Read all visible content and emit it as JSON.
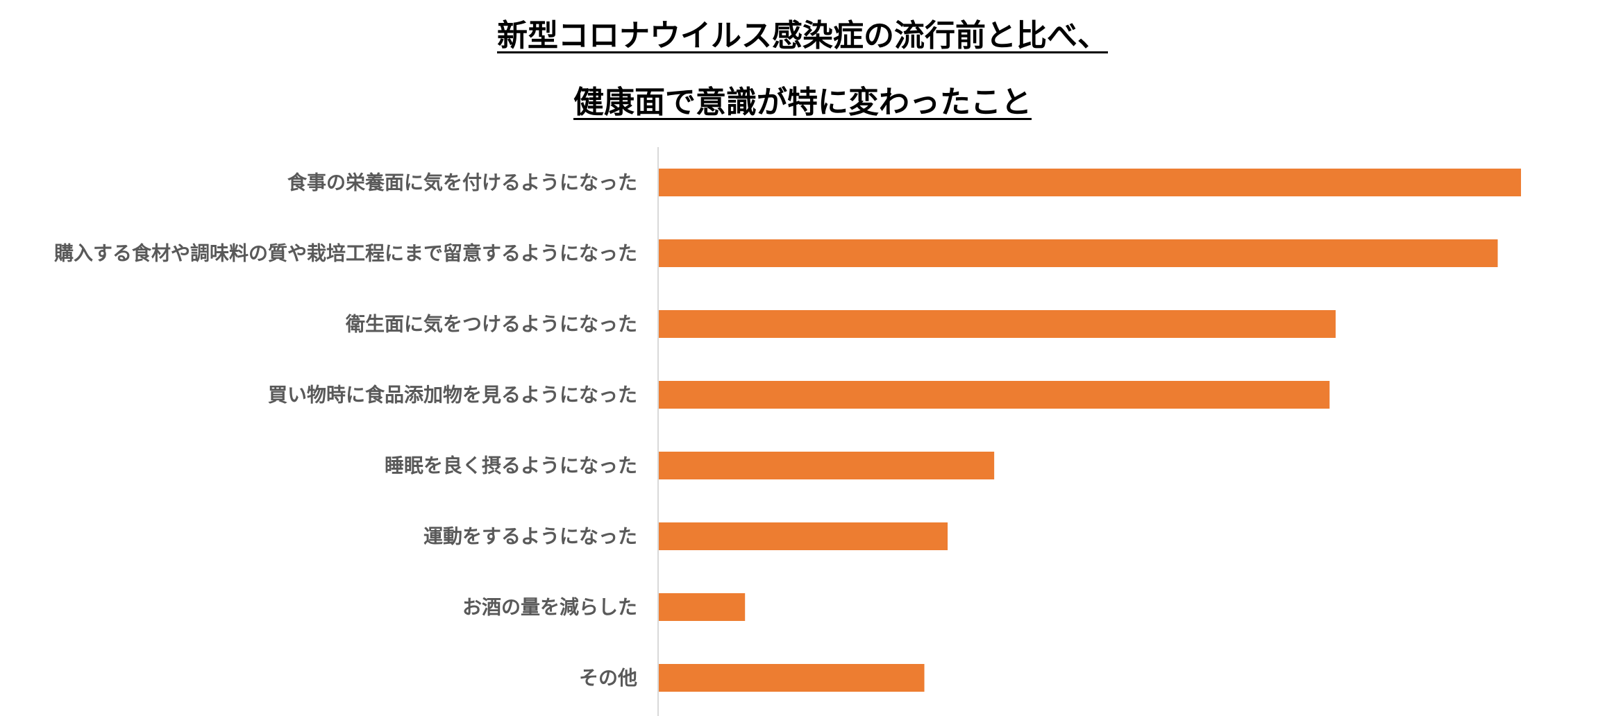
{
  "chart_data": {
    "type": "bar",
    "orientation": "horizontal",
    "title_lines": [
      "新型コロナウイルス感染症の流行前と比べ、",
      "健康面で意識が特に変わったこと"
    ],
    "categories": [
      "食事の栄養面に気を付けるようになった",
      "購入する食材や調味料の質や栽培工程にまで留意するようになった",
      "衛生面に気をつけるようになった",
      "買い物時に食品添加物を見るようになった",
      "睡眠を良く摂るようになった",
      "運動をするようになった",
      "お酒の量を減らした",
      "その他"
    ],
    "values": [
      100,
      97.3,
      78.5,
      77.8,
      38.9,
      33.5,
      10.0,
      30.8
    ],
    "xlim": [
      0,
      100
    ],
    "grid": false,
    "legend": "none",
    "bar_color": "#ED7D31",
    "axis_color": "#D9D9D9",
    "label_color": "#595959"
  }
}
